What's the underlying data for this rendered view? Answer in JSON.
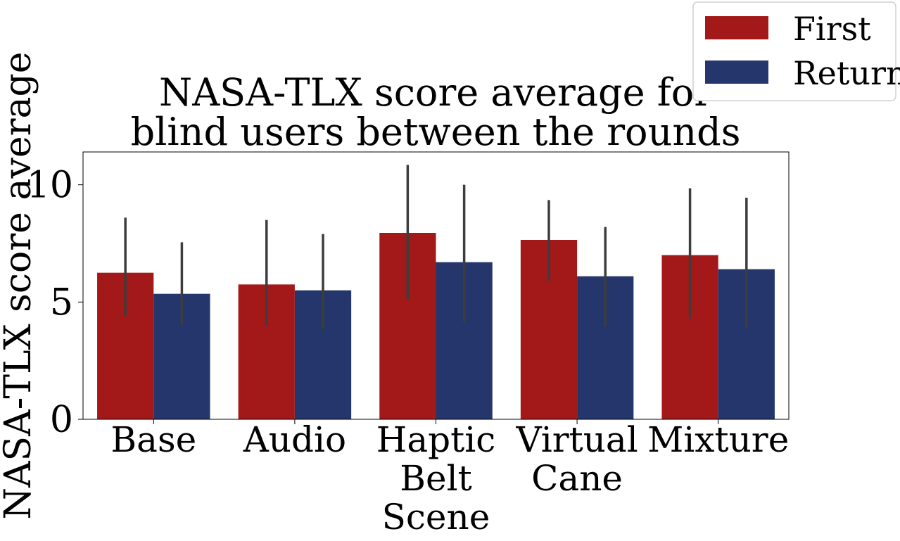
{
  "chart_data": {
    "type": "bar",
    "title_lines": [
      "NASA-TLX score average for",
      "blind users between the rounds"
    ],
    "ylabel": "NASA-TLX score average",
    "xlabel": "",
    "categories": [
      [
        "Base"
      ],
      [
        "Audio"
      ],
      [
        "Haptic",
        "Belt",
        "Scene"
      ],
      [
        "Virtual",
        "Cane"
      ],
      [
        "Mixture"
      ]
    ],
    "ylim": [
      0,
      11.4
    ],
    "yticks": [
      0,
      5,
      10
    ],
    "ytick_labels": [
      "0",
      "5",
      "10"
    ],
    "grid": false,
    "legend_position": "top-right",
    "series": [
      {
        "name": "First",
        "color": "#a31818",
        "values": [
          6.25,
          5.75,
          7.95,
          7.65,
          7.0
        ],
        "err_low": [
          4.4,
          4.0,
          5.1,
          5.9,
          4.3
        ],
        "err_high": [
          8.6,
          8.5,
          10.85,
          9.35,
          9.85
        ]
      },
      {
        "name": "Return",
        "color": "#24366b",
        "values": [
          5.35,
          5.5,
          6.7,
          6.1,
          6.4
        ],
        "err_low": [
          4.05,
          3.85,
          4.15,
          3.95,
          3.9
        ],
        "err_high": [
          7.55,
          7.9,
          10.0,
          8.2,
          9.45
        ]
      }
    ],
    "errorbar_color": "#3d3d3d"
  }
}
